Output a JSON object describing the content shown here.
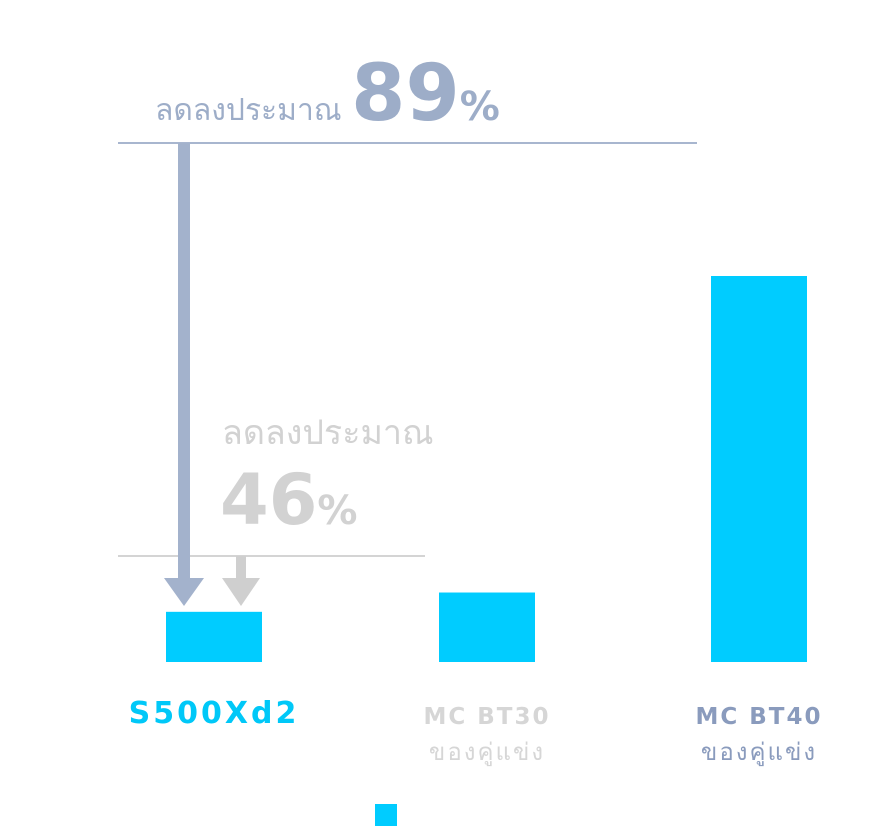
{
  "chart_data": {
    "type": "bar",
    "categories": [
      "S500Xd2",
      "MC BT30",
      "MC BT40"
    ],
    "category_notes": [
      null,
      "ของคู่แข่ง",
      "ของคู่แข่ง"
    ],
    "values": [
      13,
      18,
      100
    ],
    "color": "#00ccff",
    "ylim": [
      0,
      100
    ],
    "annotations": [
      {
        "text": "ลดลงประมาณ",
        "value": "89",
        "unit": "%"
      },
      {
        "text": "ลดลงประมาณ",
        "value": "46",
        "unit": "%"
      }
    ]
  }
}
